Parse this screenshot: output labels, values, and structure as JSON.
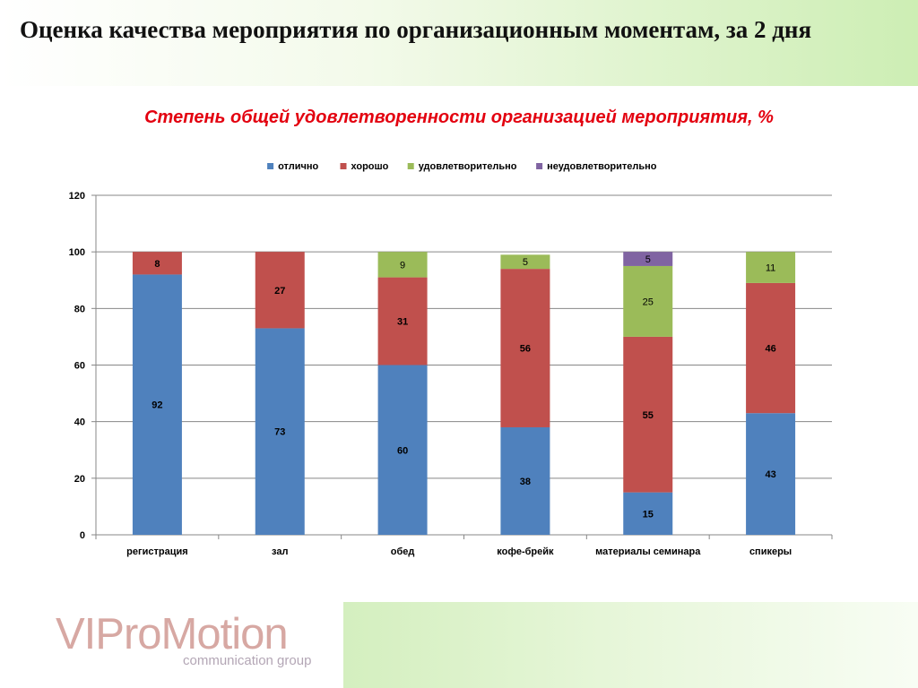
{
  "slide": {
    "title": "Оценка качества мероприятия по организационным моментам, за 2  дня"
  },
  "logo": {
    "text": "VIProMotion",
    "subtext": "communication group"
  },
  "colors": {
    "excellent": "#4f81bd",
    "good": "#c0504d",
    "satisfactory": "#9bbb59",
    "unsatisfactory": "#8064a2",
    "title_red": "#e3000f"
  },
  "chart_data": {
    "type": "bar",
    "stacked": true,
    "title": "Степень общей удовлетворенности организацией мероприятия, %",
    "categories": [
      "регистрация",
      "зал",
      "обед",
      "кофе-брейк",
      "материалы семинара",
      "спикеры"
    ],
    "series": [
      {
        "name": "отлично",
        "values": [
          92,
          73,
          60,
          38,
          15,
          43
        ]
      },
      {
        "name": "хорошо",
        "values": [
          8,
          27,
          31,
          56,
          55,
          46
        ]
      },
      {
        "name": "удовлетворительно",
        "values": [
          null,
          null,
          9,
          5,
          25,
          11
        ]
      },
      {
        "name": "неудовлетворительно",
        "values": [
          null,
          null,
          null,
          null,
          5,
          null
        ]
      }
    ],
    "ylim": [
      0,
      120
    ],
    "yticks": [
      0,
      20,
      40,
      60,
      80,
      100,
      120
    ],
    "grid": true,
    "legend_position": "top"
  }
}
